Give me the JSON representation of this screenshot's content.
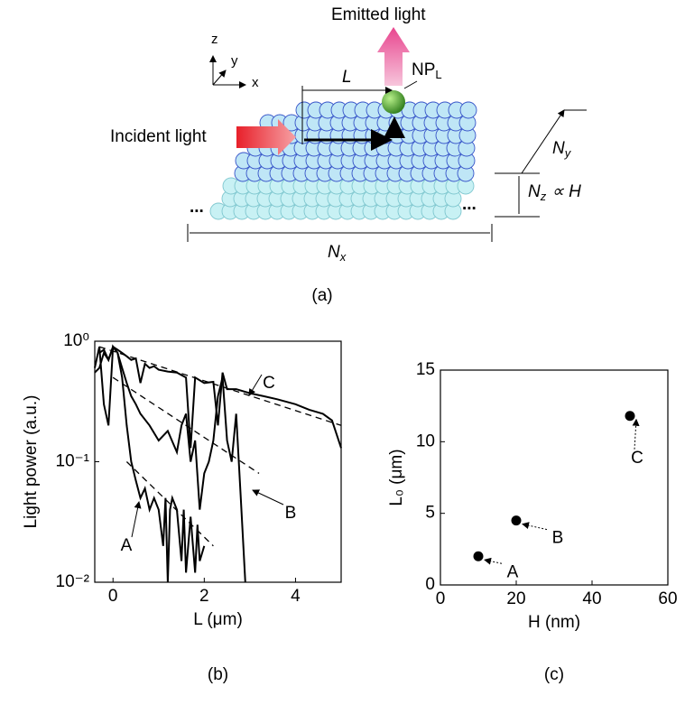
{
  "diagram": {
    "emitted": "Emitted light",
    "incident": "Incident light",
    "axes": [
      "z",
      "y",
      "x"
    ],
    "length": "L",
    "particle": {
      "base": "NP",
      "sub": "L"
    },
    "ny": {
      "base": "N",
      "sub": "y"
    },
    "nz": {
      "base": "N",
      "sub": "z",
      "suffix": "∝ H"
    },
    "nx": {
      "base": "N",
      "sub": "x"
    },
    "ellipsis": [
      "...",
      "..."
    ],
    "label": "(a)"
  },
  "chart_data": [
    {
      "type": "line",
      "panel_label": "(b)",
      "x_label": "L (μm)",
      "y_label": "Light power (a.u.)",
      "log_y": true,
      "xlim": [
        -0.4,
        5
      ],
      "xticks": [
        0,
        2,
        4
      ],
      "ylim": [
        0.01,
        1
      ],
      "yticks": [
        {
          "value": 0.01,
          "label": "10⁻²"
        },
        {
          "value": 0.1,
          "label": "10⁻¹"
        },
        {
          "value": 1,
          "label": "10⁰"
        }
      ],
      "series": [
        {
          "name": "A",
          "color": "#000000",
          "x": [
            -0.4,
            -0.3,
            -0.2,
            -0.1,
            0,
            0.1,
            0.2,
            0.3,
            0.4,
            0.5,
            0.6,
            0.7,
            0.8,
            0.9,
            1.0,
            1.1,
            1.15,
            1.2,
            1.25,
            1.3,
            1.4,
            1.5,
            1.55,
            1.6,
            1.7,
            1.8,
            1.85,
            1.9,
            2.0
          ],
          "values": [
            0.6,
            0.9,
            0.3,
            0.2,
            0.9,
            0.8,
            0.5,
            0.2,
            0.1,
            0.07,
            0.05,
            0.06,
            0.04,
            0.05,
            0.04,
            0.02,
            0.05,
            0.01,
            0.04,
            0.05,
            0.04,
            0.015,
            0.04,
            0.012,
            0.035,
            0.012,
            0.03,
            0.015,
            0.02
          ],
          "fit": {
            "x": [
              0.3,
              2.2
            ],
            "values": [
              0.1,
              0.02
            ]
          }
        },
        {
          "name": "B",
          "color": "#000000",
          "x": [
            -0.3,
            -0.2,
            -0.1,
            0,
            0.1,
            0.2,
            0.3,
            0.4,
            0.5,
            0.6,
            0.8,
            1.0,
            1.2,
            1.4,
            1.5,
            1.6,
            1.7,
            1.8,
            1.9,
            2.0,
            2.1,
            2.2,
            2.3,
            2.4,
            2.5,
            2.6,
            2.7,
            2.8,
            2.9
          ],
          "values": [
            0.8,
            0.85,
            0.7,
            0.9,
            0.8,
            0.6,
            0.45,
            0.35,
            0.3,
            0.25,
            0.2,
            0.15,
            0.18,
            0.12,
            0.2,
            0.25,
            0.1,
            0.15,
            0.04,
            0.08,
            0.1,
            0.15,
            0.35,
            0.5,
            0.15,
            0.1,
            0.25,
            0.05,
            0.01
          ],
          "fit": {
            "x": [
              0,
              3.2
            ],
            "values": [
              0.5,
              0.08
            ]
          }
        },
        {
          "name": "C",
          "color": "#000000",
          "x": [
            -0.4,
            -0.3,
            -0.2,
            -0.1,
            0,
            0.1,
            0.2,
            0.3,
            0.4,
            0.5,
            0.6,
            0.7,
            0.8,
            0.9,
            1.0,
            1.2,
            1.4,
            1.6,
            1.7,
            1.8,
            2.0,
            2.2,
            2.3,
            2.4,
            2.5,
            2.7,
            3.0,
            3.3,
            3.6,
            4.0,
            4.3,
            4.6,
            4.8,
            5.0
          ],
          "values": [
            0.55,
            0.6,
            0.8,
            0.7,
            0.9,
            0.85,
            0.8,
            0.75,
            0.7,
            0.72,
            0.45,
            0.65,
            0.6,
            0.62,
            0.58,
            0.56,
            0.55,
            0.5,
            0.13,
            0.5,
            0.45,
            0.46,
            0.2,
            0.55,
            0.4,
            0.4,
            0.37,
            0.35,
            0.33,
            0.3,
            0.27,
            0.25,
            0.22,
            0.13
          ],
          "fit": {
            "x": [
              -0.3,
              5
            ],
            "values": [
              0.9,
              0.2
            ]
          }
        }
      ]
    },
    {
      "type": "scatter",
      "panel_label": "(c)",
      "x_label": "H (nm)",
      "y_label": "L₀ (μm)",
      "xlim": [
        0,
        60
      ],
      "xticks": [
        0,
        20,
        40,
        60
      ],
      "ylim": [
        0,
        15
      ],
      "yticks": [
        0,
        5,
        10,
        15
      ],
      "x": [
        10,
        20,
        50
      ],
      "values": [
        2,
        4.5,
        11.8
      ],
      "labels": [
        "A",
        "B",
        "C"
      ],
      "color": "#000000"
    }
  ]
}
